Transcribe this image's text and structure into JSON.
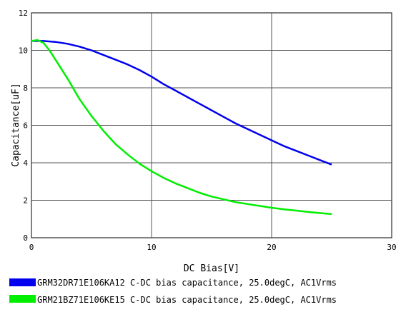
{
  "chart_data": {
    "type": "line",
    "title": "",
    "xlabel": "DC Bias[V]",
    "ylabel": "Capacitance[uF]",
    "xlim": [
      0,
      30
    ],
    "ylim": [
      0,
      12
    ],
    "x_ticks": [
      "0",
      "10",
      "20",
      "30"
    ],
    "y_ticks": [
      "0",
      "2",
      "4",
      "6",
      "8",
      "10",
      "12"
    ],
    "grid": true,
    "legend_position": "bottom",
    "series": [
      {
        "name": "GRM32DR71E106KA12 C-DC bias capacitance, 25.0degC, AC1Vrms",
        "color": "#0000ee",
        "x": [
          0,
          1,
          2,
          3,
          4,
          5,
          6,
          7,
          8,
          9,
          10,
          11,
          12,
          13,
          14,
          15,
          16,
          17,
          18,
          19,
          20,
          21,
          22,
          23,
          24,
          25
        ],
        "y": [
          10.5,
          10.5,
          10.45,
          10.35,
          10.2,
          10.0,
          9.75,
          9.5,
          9.25,
          8.95,
          8.6,
          8.2,
          7.85,
          7.5,
          7.15,
          6.8,
          6.45,
          6.1,
          5.8,
          5.5,
          5.2,
          4.9,
          4.65,
          4.4,
          4.15,
          3.9
        ]
      },
      {
        "name": "GRM21BZ71E106KE15 C-DC bias capacitance, 25.0degC, AC1Vrms",
        "color": "#00ee00",
        "x": [
          0,
          0.5,
          1,
          1.5,
          2,
          3,
          4,
          5,
          6,
          7,
          8,
          9,
          10,
          11,
          12,
          13,
          14,
          15,
          16,
          17,
          18,
          19,
          20,
          21,
          22,
          23,
          24,
          25
        ],
        "y": [
          10.5,
          10.55,
          10.4,
          10.0,
          9.5,
          8.5,
          7.4,
          6.5,
          5.7,
          5.0,
          4.45,
          3.95,
          3.55,
          3.2,
          2.9,
          2.65,
          2.4,
          2.2,
          2.05,
          1.9,
          1.8,
          1.7,
          1.6,
          1.52,
          1.45,
          1.38,
          1.32,
          1.26
        ]
      }
    ]
  }
}
